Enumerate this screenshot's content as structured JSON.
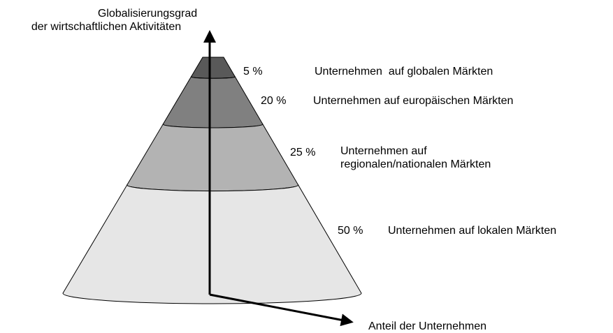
{
  "axis": {
    "vertical_label": [
      "Globalisierungsgrad",
      "der wirtschaftlichen Aktivitäten"
    ],
    "horizontal_label": "Anteil der Unternehmen"
  },
  "layers": [
    {
      "percent": "5 %",
      "label": [
        "Unternehmen  auf globalen Märkten"
      ]
    },
    {
      "percent": "20 %",
      "label": [
        "Unternehmen auf europäischen Märkten"
      ]
    },
    {
      "percent": "25 %",
      "label": [
        "Unternehmen auf",
        "regionalen/nationalen Märkten"
      ]
    },
    {
      "percent": "50 %",
      "label": [
        "Unternehmen auf lokalen Märkten"
      ]
    }
  ]
}
